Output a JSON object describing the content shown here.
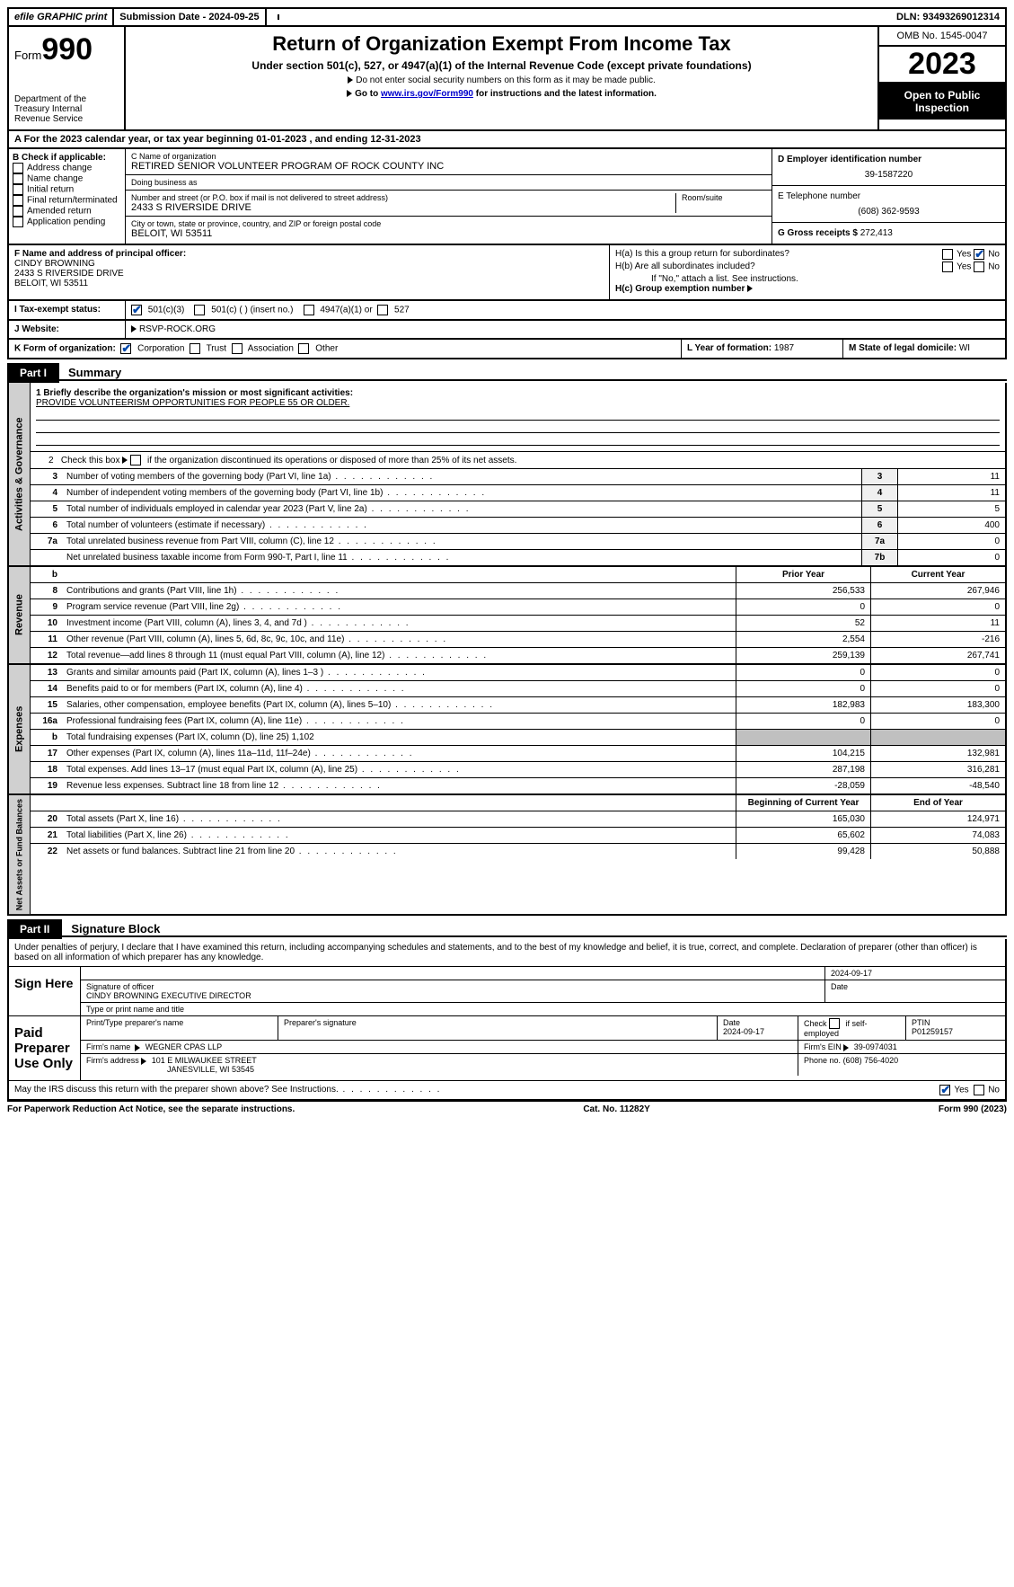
{
  "top": {
    "efile": "efile GRAPHIC print",
    "submission_label": "Submission Date - 2024-09-25",
    "dln": "DLN: 93493269012314"
  },
  "header": {
    "form_word": "Form",
    "form_num": "990",
    "dept": "Department of the Treasury\nInternal Revenue Service",
    "title": "Return of Organization Exempt From Income Tax",
    "subtitle": "Under section 501(c), 527, or 4947(a)(1) of the Internal Revenue Code (except private foundations)",
    "note1": "Do not enter social security numbers on this form as it may be made public.",
    "note2_pre": "Go to ",
    "note2_link": "www.irs.gov/Form990",
    "note2_post": " for instructions and the latest information.",
    "omb": "OMB No. 1545-0047",
    "year": "2023",
    "open": "Open to Public Inspection"
  },
  "rowA": "A For the 2023 calendar year, or tax year beginning 01-01-2023   , and ending 12-31-2023",
  "boxB": {
    "label": "B Check if applicable:",
    "items": [
      "Address change",
      "Name change",
      "Initial return",
      "Final return/terminated",
      "Amended return",
      "Application pending"
    ]
  },
  "boxC": {
    "name_label": "C Name of organization",
    "name": "RETIRED SENIOR VOLUNTEER PROGRAM OF ROCK COUNTY INC",
    "dba_label": "Doing business as",
    "dba": "",
    "street_label": "Number and street (or P.O. box if mail is not delivered to street address)",
    "street": "2433 S RIVERSIDE DRIVE",
    "room_label": "Room/suite",
    "city_label": "City or town, state or province, country, and ZIP or foreign postal code",
    "city": "BELOIT, WI  53511"
  },
  "boxD": {
    "label": "D Employer identification number",
    "val": "39-1587220"
  },
  "boxE": {
    "label": "E Telephone number",
    "val": "(608) 362-9593"
  },
  "boxG": {
    "label": "G Gross receipts $",
    "val": "272,413"
  },
  "boxF": {
    "label": "F  Name and address of principal officer:",
    "name": "CINDY BROWNING",
    "street": "2433 S RIVERSIDE DRIVE",
    "city": "BELOIT, WI  53511"
  },
  "boxH": {
    "a_label": "H(a)  Is this a group return for subordinates?",
    "a_yes": "Yes",
    "a_no": "No",
    "b_label": "H(b)  Are all subordinates included?",
    "b_yes": "Yes",
    "b_no": "No",
    "b_note": "If \"No,\" attach a list. See instructions.",
    "c_label": "H(c)  Group exemption number",
    "c_val": ""
  },
  "boxI": {
    "label": "I   Tax-exempt status:",
    "o1": "501(c)(3)",
    "o2": "501(c) (  ) (insert no.)",
    "o3": "4947(a)(1) or",
    "o4": "527"
  },
  "boxJ": {
    "label": "J   Website:",
    "val": "RSVP-ROCK.ORG"
  },
  "boxK": {
    "label": "K Form of organization:",
    "o1": "Corporation",
    "o2": "Trust",
    "o3": "Association",
    "o4": "Other"
  },
  "boxL": {
    "label": "L Year of formation:",
    "val": "1987"
  },
  "boxM": {
    "label": "M State of legal domicile:",
    "val": "WI"
  },
  "part1": {
    "tab": "Part I",
    "title": "Summary"
  },
  "mission": {
    "label": "1   Briefly describe the organization's mission or most significant activities:",
    "text": "PROVIDE VOLUNTEERISM OPPORTUNITIES FOR PEOPLE 55 OR OLDER."
  },
  "line2": "2   Check this box       if the organization discontinued its operations or disposed of more than 25% of its net assets.",
  "gov_lines": [
    {
      "n": "3",
      "d": "Number of voting members of the governing body (Part VI, line 1a)",
      "b": "3",
      "v": "11"
    },
    {
      "n": "4",
      "d": "Number of independent voting members of the governing body (Part VI, line 1b)",
      "b": "4",
      "v": "11"
    },
    {
      "n": "5",
      "d": "Total number of individuals employed in calendar year 2023 (Part V, line 2a)",
      "b": "5",
      "v": "5"
    },
    {
      "n": "6",
      "d": "Total number of volunteers (estimate if necessary)",
      "b": "6",
      "v": "400"
    },
    {
      "n": "7a",
      "d": "Total unrelated business revenue from Part VIII, column (C), line 12",
      "b": "7a",
      "v": "0"
    },
    {
      "n": "",
      "d": "Net unrelated business taxable income from Form 990-T, Part I, line 11",
      "b": "7b",
      "v": "0"
    }
  ],
  "revexp_hdr": {
    "b": "b",
    "prior": "Prior Year",
    "curr": "Current Year"
  },
  "rev_lines": [
    {
      "n": "8",
      "d": "Contributions and grants (Part VIII, line 1h)",
      "p": "256,533",
      "c": "267,946"
    },
    {
      "n": "9",
      "d": "Program service revenue (Part VIII, line 2g)",
      "p": "0",
      "c": "0"
    },
    {
      "n": "10",
      "d": "Investment income (Part VIII, column (A), lines 3, 4, and 7d )",
      "p": "52",
      "c": "11"
    },
    {
      "n": "11",
      "d": "Other revenue (Part VIII, column (A), lines 5, 6d, 8c, 9c, 10c, and 11e)",
      "p": "2,554",
      "c": "-216"
    },
    {
      "n": "12",
      "d": "Total revenue—add lines 8 through 11 (must equal Part VIII, column (A), line 12)",
      "p": "259,139",
      "c": "267,741"
    }
  ],
  "exp_lines": [
    {
      "n": "13",
      "d": "Grants and similar amounts paid (Part IX, column (A), lines 1–3 )",
      "p": "0",
      "c": "0"
    },
    {
      "n": "14",
      "d": "Benefits paid to or for members (Part IX, column (A), line 4)",
      "p": "0",
      "c": "0"
    },
    {
      "n": "15",
      "d": "Salaries, other compensation, employee benefits (Part IX, column (A), lines 5–10)",
      "p": "182,983",
      "c": "183,300"
    },
    {
      "n": "16a",
      "d": "Professional fundraising fees (Part IX, column (A), line 11e)",
      "p": "0",
      "c": "0"
    },
    {
      "n": "b",
      "d": "Total fundraising expenses (Part IX, column (D), line 25) 1,102",
      "p": "",
      "c": "",
      "shaded": true
    },
    {
      "n": "17",
      "d": "Other expenses (Part IX, column (A), lines 11a–11d, 11f–24e)",
      "p": "104,215",
      "c": "132,981"
    },
    {
      "n": "18",
      "d": "Total expenses. Add lines 13–17 (must equal Part IX, column (A), line 25)",
      "p": "287,198",
      "c": "316,281"
    },
    {
      "n": "19",
      "d": "Revenue less expenses. Subtract line 18 from line 12",
      "p": "-28,059",
      "c": "-48,540"
    }
  ],
  "na_hdr": {
    "begin": "Beginning of Current Year",
    "end": "End of Year"
  },
  "na_lines": [
    {
      "n": "20",
      "d": "Total assets (Part X, line 16)",
      "p": "165,030",
      "c": "124,971"
    },
    {
      "n": "21",
      "d": "Total liabilities (Part X, line 26)",
      "p": "65,602",
      "c": "74,083"
    },
    {
      "n": "22",
      "d": "Net assets or fund balances. Subtract line 21 from line 20",
      "p": "99,428",
      "c": "50,888"
    }
  ],
  "side_labels": {
    "gov": "Activities & Governance",
    "rev": "Revenue",
    "exp": "Expenses",
    "na": "Net Assets or Fund Balances"
  },
  "part2": {
    "tab": "Part II",
    "title": "Signature Block"
  },
  "sig": {
    "perjury": "Under penalties of perjury, I declare that I have examined this return, including accompanying schedules and statements, and to the best of my knowledge and belief, it is true, correct, and complete. Declaration of preparer (other than officer) is based on all information of which preparer has any knowledge.",
    "sign_here": "Sign Here",
    "date1": "2024-09-17",
    "sig_officer_label": "Signature of officer",
    "officer": "CINDY BROWNING  EXECUTIVE DIRECTOR",
    "type_label": "Type or print name and title",
    "date_label": "Date",
    "paid": "Paid Preparer Use Only",
    "prep_name_label": "Print/Type preparer's name",
    "prep_sig_label": "Preparer's signature",
    "prep_date_label": "Date",
    "prep_date": "2024-09-17",
    "self_emp": "Check        if self-employed",
    "ptin_label": "PTIN",
    "ptin": "P01259157",
    "firm_name_label": "Firm's name",
    "firm_name": "WEGNER CPAS LLP",
    "firm_ein_label": "Firm's EIN",
    "firm_ein": "39-0974031",
    "firm_addr_label": "Firm's address",
    "firm_addr1": "101 E MILWAUKEE STREET",
    "firm_addr2": "JANESVILLE, WI  53545",
    "phone_label": "Phone no.",
    "phone": "(608) 756-4020",
    "discuss": "May the IRS discuss this return with the preparer shown above? See Instructions.",
    "discuss_yes": "Yes",
    "discuss_no": "No"
  },
  "footer": {
    "left": "For Paperwork Reduction Act Notice, see the separate instructions.",
    "mid": "Cat. No. 11282Y",
    "right": "Form 990 (2023)"
  }
}
